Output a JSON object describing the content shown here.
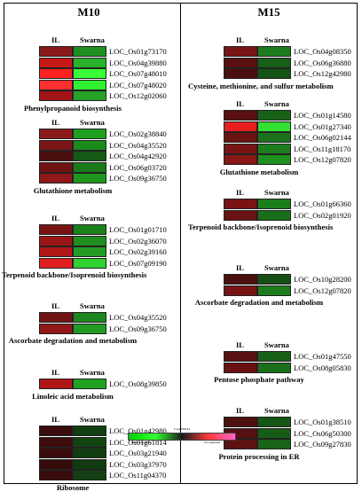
{
  "columns": [
    {
      "title": "M10",
      "panels": [
        {
          "title": "Phenylpropanoid biosynthesis",
          "rows": [
            {
              "gene": "LOC_Os01g73170",
              "il": "#8b1a1a",
              "sw": "#1f8f1f"
            },
            {
              "gene": "LOC_Os04g39880",
              "il": "#c71818",
              "sw": "#2ab02a"
            },
            {
              "gene": "LOC_Os07g48010",
              "il": "#ff2020",
              "sw": "#39ff39"
            },
            {
              "gene": "LOC_Os07g48020",
              "il": "#ff3030",
              "sw": "#30f030"
            },
            {
              "gene": "LOC_Os12g02060",
              "il": "#a01515",
              "sw": "#27a127"
            }
          ]
        },
        {
          "title": "Glutathione metabolism",
          "rows": [
            {
              "gene": "LOC_Os02g38840",
              "il": "#8b1a1a",
              "sw": "#20a020"
            },
            {
              "gene": "LOC_Os04g35520",
              "il": "#7a1515",
              "sw": "#1b8a1b"
            },
            {
              "gene": "LOC_Os04g42920",
              "il": "#4a0f0f",
              "sw": "#145a14"
            },
            {
              "gene": "LOC_Os06g03720",
              "il": "#6e1212",
              "sw": "#1a7a1a"
            },
            {
              "gene": "LOC_Os09g36750",
              "il": "#8f1818",
              "sw": "#1e961e"
            }
          ]
        },
        {
          "title": "Terpenoid backbone/Isoprenoid biosynthesis",
          "rows": [
            {
              "gene": "LOC_Os01g01710",
              "il": "#7a1414",
              "sw": "#1a801a"
            },
            {
              "gene": "LOC_Os02g36070",
              "il": "#9a1616",
              "sw": "#208e20"
            },
            {
              "gene": "LOC_Os02g39160",
              "il": "#b01818",
              "sw": "#239a23"
            },
            {
              "gene": "LOC_Os07g09190",
              "il": "#e02020",
              "sw": "#2fd02f"
            }
          ]
        },
        {
          "title": "Ascorbate degradation and metabolism",
          "rows": [
            {
              "gene": "LOC_Os04g35520",
              "il": "#701414",
              "sw": "#1e861e"
            },
            {
              "gene": "LOC_Os09g36750",
              "il": "#901818",
              "sw": "#229a22"
            }
          ]
        },
        {
          "title": "Linoleic acid metabolism",
          "rows": [
            {
              "gene": "LOC_Os08g39850",
              "il": "#b01616",
              "sw": "#21a321"
            }
          ]
        },
        {
          "title": "Ribosome",
          "rows": [
            {
              "gene": "LOC_Os01g42980",
              "il": "#3a0c0c",
              "sw": "#123f12"
            },
            {
              "gene": "LOC_Os01g61814",
              "il": "#3e0c0c",
              "sw": "#124412"
            },
            {
              "gene": "LOC_Os03g21940",
              "il": "#3a0b0b",
              "sw": "#113d11"
            },
            {
              "gene": "LOC_Os03g37970",
              "il": "#360b0b",
              "sw": "#103a10"
            },
            {
              "gene": "LOC_Os11g04370",
              "il": "#3b0c0c",
              "sw": "#124012"
            }
          ]
        }
      ]
    },
    {
      "title": "M15",
      "panels": [
        {
          "title": "Cysteine, methionine, and sulfur metabolism",
          "rows": [
            {
              "gene": "LOC_Os04g08350",
              "il": "#7a1515",
              "sw": "#1b7c1b"
            },
            {
              "gene": "LOC_Os06g36880",
              "il": "#5a1010",
              "sw": "#176017"
            },
            {
              "gene": "LOC_Os12g42980",
              "il": "#4a0f0f",
              "sw": "#155215"
            }
          ]
        },
        {
          "title": "Glutathione metabolism",
          "rows": [
            {
              "gene": "LOC_Os01g14580",
              "il": "#5a1010",
              "sw": "#186218"
            },
            {
              "gene": "LOC_Os01g27340",
              "il": "#e81e1e",
              "sw": "#33e033"
            },
            {
              "gene": "LOC_Os06g02144",
              "il": "#6a1212",
              "sw": "#1a721a"
            },
            {
              "gene": "LOC_Os11g18170",
              "il": "#7a1414",
              "sw": "#1c7e1c"
            },
            {
              "gene": "LOC_Os12g07820",
              "il": "#8a1616",
              "sw": "#1e901e"
            }
          ]
        },
        {
          "title": "Terpenoid backbone/Isoprenoid biosynthesis",
          "rows": [
            {
              "gene": "LOC_Os01g66360",
              "il": "#7a1414",
              "sw": "#1b7e1b"
            },
            {
              "gene": "LOC_Os02g01920",
              "il": "#6a1212",
              "sw": "#196f19"
            }
          ]
        },
        {
          "title": "Ascorbate degradation and metabolism",
          "rows": [
            {
              "gene": "LOC_Os10g28200",
              "il": "#4a0f0f",
              "sw": "#164e16"
            },
            {
              "gene": "LOC_Os12g07820",
              "il": "#7a1414",
              "sw": "#1c7c1c"
            }
          ]
        },
        {
          "title": "Pentose phosphate pathway",
          "rows": [
            {
              "gene": "LOC_Os01g47550",
              "il": "#5a1010",
              "sw": "#186018"
            },
            {
              "gene": "LOC_Os08g05830",
              "il": "#6a1212",
              "sw": "#1a701a"
            }
          ]
        },
        {
          "title": "Protein processing in ER",
          "rows": [
            {
              "gene": "LOC_Os01g38510",
              "il": "#4e0f0f",
              "sw": "#155515"
            },
            {
              "gene": "LOC_Os06g50300",
              "il": "#561010",
              "sw": "#165c16"
            },
            {
              "gene": "LOC_Os09g27830",
              "il": "#5e1111",
              "sw": "#186418"
            }
          ]
        }
      ]
    }
  ],
  "header": {
    "il": "IL",
    "swarna": "Swarna"
  },
  "legend": {
    "title": "Log2 FPKM",
    "left": "Down regulated",
    "right": "Up regulated"
  }
}
